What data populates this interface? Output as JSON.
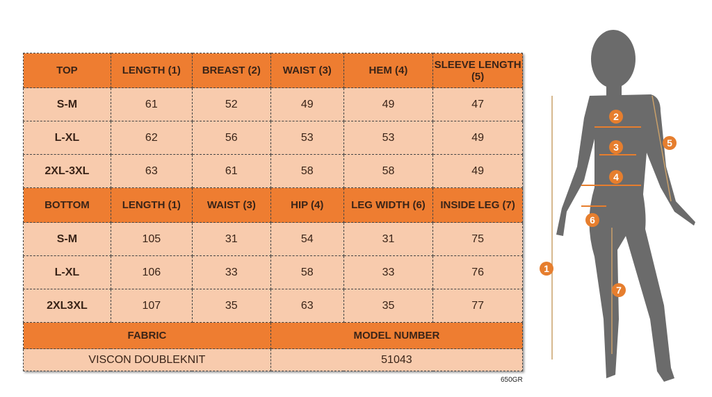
{
  "top": {
    "headers": [
      "TOP",
      "LENGTH (1)",
      "BREAST (2)",
      "WAIST (3)",
      "HEM (4)",
      "SLEEVE LENGTH (5)"
    ],
    "rows": [
      [
        "S-M",
        "61",
        "52",
        "49",
        "49",
        "47"
      ],
      [
        "L-XL",
        "62",
        "56",
        "53",
        "53",
        "49"
      ],
      [
        "2XL-3XL",
        "63",
        "61",
        "58",
        "58",
        "49"
      ]
    ]
  },
  "bottom": {
    "headers": [
      "BOTTOM",
      "LENGTH (1)",
      "WAIST (3)",
      "HIP (4)",
      "LEG WIDTH (6)",
      "INSIDE LEG (7)"
    ],
    "rows": [
      [
        "S-M",
        "105",
        "31",
        "54",
        "31",
        "75"
      ],
      [
        "L-XL",
        "106",
        "33",
        "58",
        "33",
        "76"
      ],
      [
        "2XL3XL",
        "107",
        "35",
        "63",
        "35",
        "77"
      ]
    ]
  },
  "fabric": {
    "label": "FABRIC",
    "value": "VISCON DOUBLEKNIT"
  },
  "model": {
    "label": "MODEL NUMBER",
    "value": "51043"
  },
  "code": "650GR",
  "markers": [
    "1",
    "2",
    "3",
    "4",
    "5",
    "6",
    "7"
  ],
  "colors": {
    "header": "#ee7d31",
    "cell": "#f8cbad",
    "silhouette": "#6b6b6b",
    "marker": "#e67e2e"
  }
}
